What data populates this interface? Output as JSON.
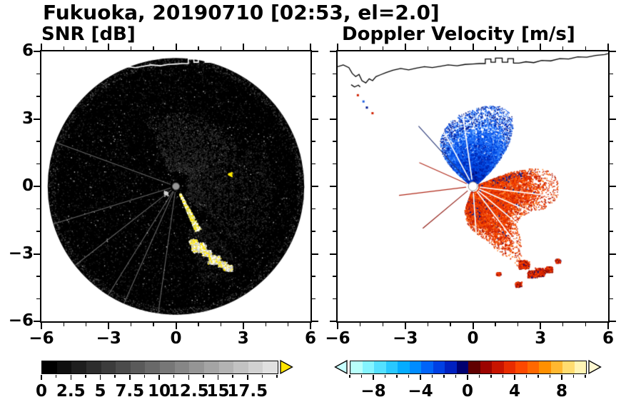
{
  "title": "Fukuoka, 20190710 [02:53, el=2.0]",
  "panels": {
    "snr": {
      "label": "SNR [dB]"
    },
    "doppler": {
      "label": "Doppler Velocity [m/s]"
    }
  },
  "axes": {
    "xlim": [
      -6,
      6
    ],
    "ylim": [
      -6,
      6
    ],
    "major_ticks": [
      -6,
      -3,
      0,
      3,
      6
    ],
    "minor_ticks": [
      -5,
      -4,
      -2,
      -1,
      1,
      2,
      4,
      5
    ],
    "x_tick_labels": [
      "−6",
      "−3",
      "0",
      "3",
      "6"
    ],
    "y_tick_values": [
      6,
      3,
      0,
      -3,
      -6
    ],
    "y_tick_labels": [
      "6",
      "3",
      "0",
      "−3",
      "−6"
    ]
  },
  "snr_colorbar": {
    "range": [
      0,
      20
    ],
    "segments": 16,
    "gray_start": 0,
    "gray_end": 224,
    "minor_step": 1.25,
    "label_values": [
      0,
      2.5,
      5,
      7.5,
      10,
      12.5,
      15,
      17.5
    ],
    "label_texts": [
      "0",
      "2.5",
      "5",
      "7.5",
      "10",
      "12.5",
      "15",
      "17.5"
    ],
    "over_arrow_color": "#ffe400"
  },
  "doppler_colorbar": {
    "range": [
      -10,
      10
    ],
    "colors": [
      "#b8fffb",
      "#84f4ff",
      "#54e0ff",
      "#28c8ff",
      "#04acff",
      "#008cff",
      "#0064f8",
      "#0040e4",
      "#0020c0",
      "#000070",
      "#600000",
      "#9c0400",
      "#c81400",
      "#e82c00",
      "#fc4800",
      "#ff6800",
      "#ff9000",
      "#ffb830",
      "#ffdc70",
      "#fff4b4"
    ],
    "minor_step": 1,
    "label_values": [
      -8,
      -4,
      0,
      4,
      8
    ],
    "label_texts": [
      "−8",
      "−4",
      "0",
      "4",
      "8"
    ],
    "under_arrow_color": "#c8ffff",
    "over_arrow_color": "#fff8d2"
  },
  "coastline": {
    "main": [
      [
        -6.0,
        5.32
      ],
      [
        -5.75,
        5.4
      ],
      [
        -5.5,
        5.28
      ],
      [
        -5.35,
        5.02
      ],
      [
        -5.2,
        4.88
      ],
      [
        -5.05,
        4.98
      ],
      [
        -4.92,
        4.7
      ],
      [
        -4.75,
        4.6
      ],
      [
        -4.6,
        4.78
      ],
      [
        -4.45,
        4.7
      ],
      [
        -4.3,
        4.88
      ],
      [
        -4.1,
        4.96
      ],
      [
        -3.85,
        5.06
      ],
      [
        -3.55,
        5.16
      ],
      [
        -3.2,
        5.24
      ],
      [
        -2.85,
        5.18
      ],
      [
        -2.5,
        5.26
      ],
      [
        -2.15,
        5.32
      ],
      [
        -1.8,
        5.28
      ],
      [
        -1.45,
        5.34
      ],
      [
        -1.1,
        5.4
      ],
      [
        -0.7,
        5.36
      ],
      [
        -0.35,
        5.42
      ],
      [
        0.0,
        5.44
      ],
      [
        0.3,
        5.46
      ],
      [
        0.55,
        5.46
      ],
      [
        0.55,
        5.66
      ],
      [
        0.8,
        5.66
      ],
      [
        0.8,
        5.52
      ],
      [
        1.0,
        5.52
      ],
      [
        1.0,
        5.7
      ],
      [
        1.3,
        5.7
      ],
      [
        1.3,
        5.52
      ],
      [
        1.55,
        5.52
      ],
      [
        1.55,
        5.68
      ],
      [
        1.8,
        5.68
      ],
      [
        1.8,
        5.48
      ],
      [
        2.05,
        5.48
      ],
      [
        2.35,
        5.54
      ],
      [
        2.7,
        5.5
      ],
      [
        3.05,
        5.6
      ],
      [
        3.45,
        5.58
      ],
      [
        3.85,
        5.68
      ],
      [
        4.25,
        5.66
      ],
      [
        4.65,
        5.76
      ],
      [
        5.05,
        5.74
      ],
      [
        5.45,
        5.82
      ],
      [
        5.85,
        5.86
      ],
      [
        6.0,
        5.9
      ]
    ],
    "island": [
      [
        -5.4,
        4.52
      ],
      [
        -5.25,
        4.42
      ],
      [
        -5.08,
        4.5
      ],
      [
        -5.0,
        4.42
      ]
    ]
  },
  "chart_data": [
    {
      "panel": "snr",
      "type": "heatmap",
      "title": "SNR [dB]",
      "xlim": [
        -6,
        6
      ],
      "ylim": [
        -6,
        6
      ],
      "grid": false,
      "colorbar": {
        "range_db": [
          0,
          20
        ],
        "tick_labels": [
          0,
          2.5,
          5,
          7.5,
          10,
          12.5,
          15,
          17.5
        ],
        "scale": "black-to-white",
        "over_range_color": "yellow"
      },
      "scan_radius": 5.72,
      "features": [
        {
          "kind": "speckle",
          "n": 9000,
          "range": [
            0,
            5.72
          ],
          "gray": [
            5,
            60
          ],
          "value": "background noise 0–3 dB over full scan disk"
        },
        {
          "kind": "speckle",
          "n": 350,
          "range": [
            0,
            5.6
          ],
          "gray": [
            120,
            220
          ],
          "value": "isolated bright noise pixels"
        },
        {
          "kind": "haze",
          "azimuth_deg": [
            -25,
            62
          ],
          "range": [
            0.7,
            3.3
          ],
          "n": 1600,
          "gray": [
            35,
            100
          ],
          "value": "diffuse echo 3–8 dB north-east of radar"
        },
        {
          "kind": "haze",
          "azimuth_deg": [
            62,
            135
          ],
          "range": [
            0.5,
            4.3
          ],
          "n": 1500,
          "gray": [
            30,
            85
          ],
          "value": "diffuse echo 2–6 dB east of radar"
        },
        {
          "kind": "haze",
          "azimuth_deg": [
            140,
            165
          ],
          "range": [
            2.0,
            4.5
          ],
          "n": 600,
          "gray": [
            25,
            80
          ],
          "value": "diffuse echo around clutter arc"
        },
        {
          "kind": "rim-noise",
          "range": [
            5.4,
            5.72
          ],
          "n": 1300,
          "gray": [
            20,
            95
          ]
        },
        {
          "kind": "rays",
          "azimuths_deg": [
            188,
            204,
            212,
            232,
            253,
            290
          ],
          "range": [
            0.25,
            5.7
          ],
          "color": "rgba(205,205,205,0.5)",
          "value": "weak radial spokes 4–7 dB"
        },
        {
          "kind": "clutter-band",
          "azimuth_deg": [
            150,
            157
          ],
          "range": [
            0.35,
            2.15
          ],
          "n": 420,
          "colors": [
            "#ffe800",
            "#ffffff",
            "#d8d870"
          ],
          "value": "ground-clutter streak >17.5 dB"
        },
        {
          "kind": "clutter-blobs",
          "blobs": [
            [
              1.0,
              -2.7,
              0.35
            ],
            [
              1.35,
              -2.95,
              0.22
            ],
            [
              1.7,
              -3.25,
              0.3
            ],
            [
              2.05,
              -3.45,
              0.2
            ],
            [
              2.3,
              -3.6,
              0.22
            ],
            [
              0.75,
              -2.45,
              0.18
            ]
          ],
          "colors": [
            "#ffffff",
            "#ffe800",
            "#c8c8c8"
          ],
          "value": "clutter arc >15 dB at 2.5–4.3 km SSE"
        },
        {
          "kind": "spot",
          "center": [
            -0.45,
            -0.3
          ],
          "size": 0.12,
          "color": "#d0d0d0",
          "value": "≈12 dB"
        },
        {
          "kind": "spot",
          "center": [
            2.4,
            0.55
          ],
          "size": 0.1,
          "color": "#ffe800",
          "value": ">15 dB"
        },
        {
          "kind": "center-dot",
          "radius": 0.16,
          "fill": "#989898",
          "ring": "#505050",
          "value": "radar site"
        }
      ]
    },
    {
      "panel": "doppler",
      "type": "heatmap",
      "title": "Doppler Velocity [m/s]",
      "xlim": [
        -6,
        6
      ],
      "ylim": [
        -6,
        6
      ],
      "grid": false,
      "colorbar": {
        "range_ms": [
          -10,
          10
        ],
        "tick_labels": [
          -8,
          -4,
          0,
          4,
          8
        ],
        "scale": "cyan-blue-navy | darkred-red-orange-yellow"
      },
      "features": [
        {
          "kind": "velocity-wedge",
          "name": "approaching-flow",
          "value": "−8 … −1 m/s",
          "azimuth_deg": [
            -50,
            47
          ],
          "rmin": 0.25,
          "profile": [
            [
              -50,
              0.9
            ],
            [
              -44,
              1.6
            ],
            [
              -36,
              2.05
            ],
            [
              -28,
              2.3
            ],
            [
              -20,
              2.5
            ],
            [
              -12,
              2.65
            ],
            [
              -4,
              2.75
            ],
            [
              4,
              2.9
            ],
            [
              12,
              3.05
            ],
            [
              20,
              3.1
            ],
            [
              28,
              2.95
            ],
            [
              34,
              2.6
            ],
            [
              40,
              2.0
            ],
            [
              47,
              1.0
            ]
          ],
          "palette": [
            "#000d7a",
            "#0028b4",
            "#0048e0",
            "#2070f8",
            "#5aa2ff"
          ],
          "n": 5200,
          "fringe_n": 1400,
          "color_mode": "radial"
        },
        {
          "kind": "velocity-wedge",
          "name": "receding-flow",
          "value": "+1 … +6 m/s",
          "azimuth_deg": [
            68,
            200
          ],
          "rmin": 0.25,
          "profile": [
            [
              68,
              1.3
            ],
            [
              74,
              2.5
            ],
            [
              82,
              3.05
            ],
            [
              95,
              3.1
            ],
            [
              105,
              2.9
            ],
            [
              112,
              2.3
            ],
            [
              122,
              2.05
            ],
            [
              132,
              2.1
            ],
            [
              140,
              2.7
            ],
            [
              150,
              3.4
            ],
            [
              158,
              2.6
            ],
            [
              166,
              2.0
            ],
            [
              175,
              1.75
            ],
            [
              188,
              1.4
            ],
            [
              200,
              0.9
            ]
          ],
          "palette": [
            "#a81000",
            "#cc2000",
            "#e83400",
            "#fa5000",
            "#ff7c1e"
          ],
          "n": 6500,
          "fringe_n": 1100,
          "color_mode": "random",
          "speck_color": "#001890",
          "speck_p": 0.025,
          "speck_zones": [
            {
              "az": [
                68,
                80
              ],
              "p": 0.22
            },
            {
              "az": [
                168,
                200
              ],
              "p": 0.1
            }
          ]
        },
        {
          "kind": "blobs",
          "name": "outlying-receding-echoes",
          "value": "+3 … +6 m/s",
          "blobs": [
            [
              2.25,
              -3.45,
              0.26
            ],
            [
              2.62,
              -3.88,
              0.22
            ],
            [
              2.95,
              -3.8,
              0.26
            ],
            [
              3.35,
              -3.68,
              0.18
            ],
            [
              2.0,
              -4.35,
              0.15
            ],
            [
              1.12,
              -3.88,
              0.1
            ],
            [
              3.75,
              -3.3,
              0.12
            ]
          ],
          "palette": [
            "#c81800",
            "#e83000",
            "#ff4c00",
            "#8c0c00"
          ]
        },
        {
          "kind": "shadow-rays",
          "azimuths_deg": [
            -28,
            -8,
            97,
            114,
            130,
            143,
            176
          ],
          "range": [
            0.3,
            3.5
          ],
          "color": "#ffffff",
          "value": "beam-blockage shadows (no data)"
        },
        {
          "kind": "thin-rays",
          "rays": [
            [
              318,
              3.6,
              "#283878"
            ],
            [
              294,
              2.6,
              "#b02818"
            ],
            [
              263,
              3.3,
              "#b02818"
            ],
            [
              230,
              2.9,
              "#901810"
            ]
          ]
        },
        {
          "kind": "specks",
          "points": [
            [
              -5.15,
              4.1,
              "#d02000"
            ],
            [
              -4.75,
              3.55,
              "#001890"
            ],
            [
              -4.5,
              3.3,
              "#d02000"
            ],
            [
              -4.9,
              3.82,
              "#2060e0"
            ]
          ]
        },
        {
          "kind": "center-hole",
          "radius": 0.2,
          "fill": "#ffffff",
          "ring": "#909090",
          "value": "radar site (no data)"
        }
      ]
    }
  ]
}
